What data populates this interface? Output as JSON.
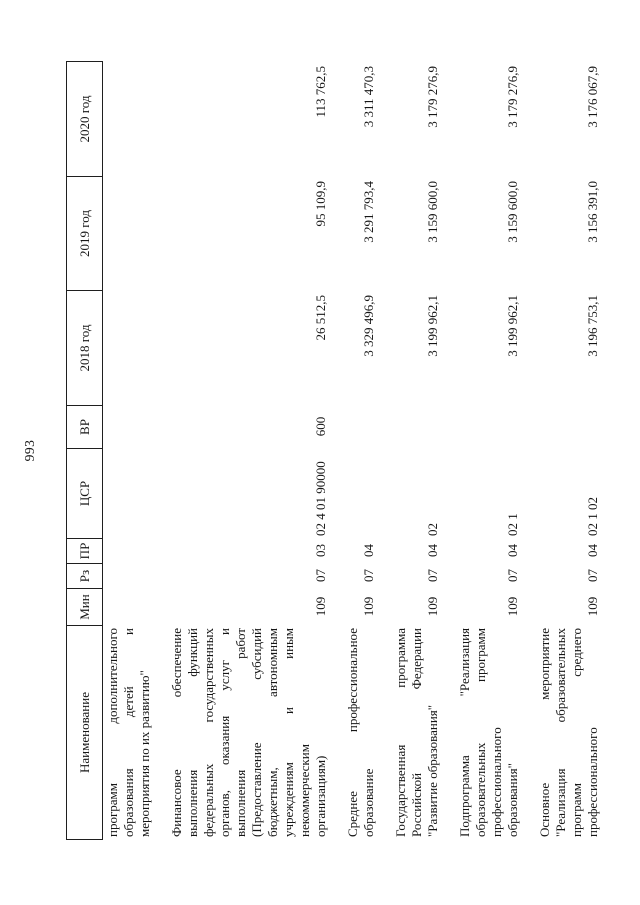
{
  "page": {
    "number": "993"
  },
  "colors": {
    "paper": "#ffffff",
    "ink": "#161616",
    "line": "#1f1f1f"
  },
  "table": {
    "columns": [
      {
        "key": "name",
        "label": "Наименование"
      },
      {
        "key": "min",
        "label": "Мин"
      },
      {
        "key": "rz",
        "label": "Рз"
      },
      {
        "key": "pr",
        "label": "ПР"
      },
      {
        "key": "csr",
        "label": "ЦСР"
      },
      {
        "key": "vr",
        "label": "ВР"
      },
      {
        "key": "y2018",
        "label": "2018 год"
      },
      {
        "key": "y2019",
        "label": "2019 год"
      },
      {
        "key": "y2020",
        "label": "2020 год"
      }
    ],
    "rows": [
      {
        "name_lines": [
          "программ дополнительного",
          "образования детей и",
          "мероприятия по их развитию\""
        ],
        "min": "",
        "rz": "",
        "pr": "",
        "csr": "",
        "vr": "",
        "y2018": "",
        "y2019": "",
        "y2020": ""
      },
      {
        "name_lines": [
          "Финансовое обеспечение",
          "выполнения функций",
          "федеральных государственных",
          "органов, оказания услуг и",
          "выполнения работ",
          "(Предоставление субсидий",
          "бюджетным, автономным",
          "учреждениям и иным",
          "некоммерческим",
          "организациям)"
        ],
        "min": "109",
        "rz": "07",
        "pr": "03",
        "csr": "02 4 01 90000",
        "vr": "600",
        "y2018": "26 512,5",
        "y2019": "95 109,9",
        "y2020": "113 762,5"
      },
      {
        "name_lines": [
          "Среднее профессиональное",
          "образование"
        ],
        "min": "109",
        "rz": "07",
        "pr": "04",
        "csr": "",
        "vr": "",
        "y2018": "3 329 496,9",
        "y2019": "3 291 793,4",
        "y2020": "3 311 470,3"
      },
      {
        "name_lines": [
          "Государственная программа",
          "Российской Федерации",
          "\"Развитие образования\""
        ],
        "min": "109",
        "rz": "07",
        "pr": "04",
        "csr": "02",
        "vr": "",
        "y2018": "3 199 962,1",
        "y2019": "3 159 600,0",
        "y2020": "3 179 276,9"
      },
      {
        "name_lines": [
          "Подпрограмма \"Реализация",
          "образовательных программ",
          "профессионального",
          "образования\""
        ],
        "min": "109",
        "rz": "07",
        "pr": "04",
        "csr": "02 1",
        "vr": "",
        "y2018": "3 199 962,1",
        "y2019": "3 159 600,0",
        "y2020": "3 179 276,9"
      },
      {
        "name_lines": [
          "Основное мероприятие",
          "\"Реализация образовательных",
          "программ среднего",
          "профессионального"
        ],
        "min": "109",
        "rz": "07",
        "pr": "04",
        "csr": "02 1 02",
        "vr": "",
        "y2018": "3 196 753,1",
        "y2019": "3 156 391,0",
        "y2020": "3 176 067,9"
      }
    ]
  }
}
